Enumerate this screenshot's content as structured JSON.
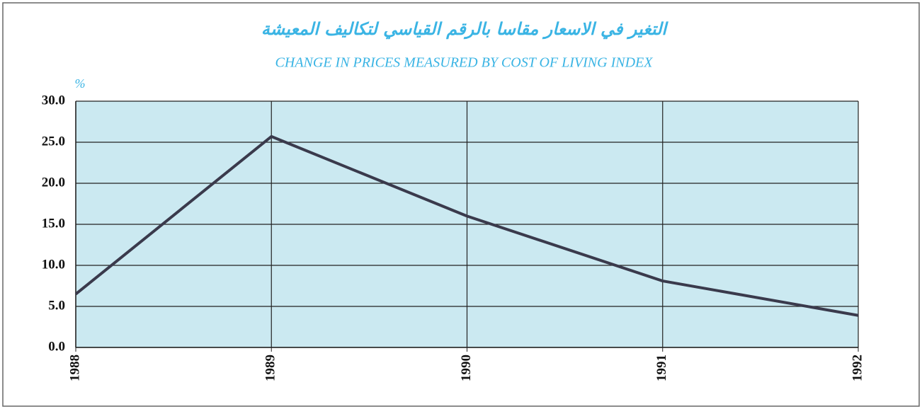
{
  "chart_data": {
    "type": "line",
    "title": "التغير في الاسعار مقاسا بالرقم القياسي لتكاليف المعيشة",
    "subtitle": "CHANGE IN PRICES MEASURED BY COST OF LIVING INDEX",
    "y_label": "%",
    "categories": [
      "1988",
      "1989",
      "1990",
      "1991",
      "1992"
    ],
    "values": [
      6.5,
      25.7,
      16.0,
      8.1,
      3.9
    ],
    "color": "#3a3a4c",
    "ylim": [
      0,
      30
    ],
    "yticks": [
      {
        "value": 0,
        "label": "0.0"
      },
      {
        "value": 5,
        "label": "5.0"
      },
      {
        "value": 10,
        "label": "10.0"
      },
      {
        "value": 15,
        "label": "15.0"
      },
      {
        "value": 20,
        "label": "20.0"
      },
      {
        "value": 25,
        "label": "25.0"
      },
      {
        "value": 30,
        "label": "30.0"
      }
    ],
    "grid": true
  }
}
